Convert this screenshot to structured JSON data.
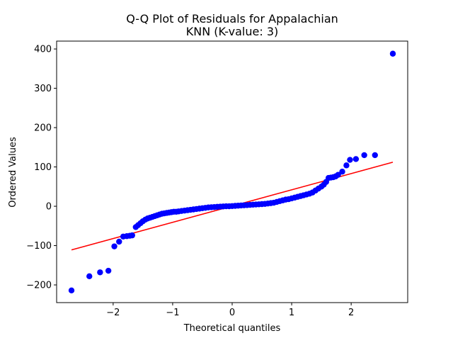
{
  "chart_data": {
    "type": "scatter",
    "title_line1": "Q-Q Plot of Residuals for Appalachian",
    "title_line2": "KNN (K-value: 3)",
    "xlabel": "Theoretical quantiles",
    "ylabel": "Ordered Values",
    "xlim": [
      -2.95,
      2.95
    ],
    "ylim": [
      -245,
      420
    ],
    "xticks": [
      -2,
      -1,
      0,
      1,
      2
    ],
    "xtick_labels": [
      "−2",
      "−1",
      "0",
      "1",
      "2"
    ],
    "yticks": [
      -200,
      -100,
      0,
      100,
      200,
      300,
      400
    ],
    "ytick_labels": [
      "−200",
      "−100",
      "0",
      "100",
      "200",
      "300",
      "400"
    ],
    "grid": false,
    "legend": "none",
    "colors": {
      "points": "#0000ff",
      "fit_line": "#ff0000"
    },
    "series": [
      {
        "kind": "points",
        "x": [
          -2.7,
          -2.4,
          -2.22,
          -2.08,
          -1.98,
          -1.9,
          -1.83,
          -1.77,
          -1.72,
          -1.68,
          -1.62,
          -1.58,
          -1.54,
          -1.5,
          -1.46,
          -1.42,
          -1.38,
          -1.34,
          -1.3,
          -1.26,
          -1.22,
          -1.18,
          -1.14,
          -1.1,
          -1.06,
          -1.02,
          -0.98,
          -0.94,
          -0.9,
          -0.85,
          -0.8,
          -0.75,
          -0.7,
          -0.65,
          -0.6,
          -0.55,
          -0.5,
          -0.45,
          -0.4,
          -0.35,
          -0.3,
          -0.25,
          -0.2,
          -0.15,
          -0.1,
          -0.05,
          0.0,
          0.05,
          0.1,
          0.15,
          0.2,
          0.25,
          0.3,
          0.35,
          0.4,
          0.45,
          0.5,
          0.55,
          0.6,
          0.65,
          0.7,
          0.75,
          0.8,
          0.85,
          0.9,
          0.95,
          1.0,
          1.05,
          1.1,
          1.15,
          1.2,
          1.25,
          1.3,
          1.35,
          1.4,
          1.45,
          1.5,
          1.54,
          1.58,
          1.62,
          1.66,
          1.7,
          1.74,
          1.78,
          1.85,
          1.92,
          1.98,
          2.08,
          2.22,
          2.4,
          2.7
        ],
        "y": [
          -214,
          -178,
          -168,
          -164,
          -102,
          -90,
          -77,
          -76,
          -75,
          -74,
          -53,
          -48,
          -43,
          -38,
          -34,
          -31,
          -29,
          -27,
          -25,
          -23,
          -21,
          -19,
          -18,
          -17,
          -16,
          -15,
          -14,
          -14,
          -13,
          -12,
          -11,
          -10,
          -9,
          -8,
          -7,
          -6,
          -5,
          -4,
          -3,
          -2.5,
          -2,
          -1.5,
          -1,
          -0.5,
          0,
          0,
          0.5,
          1,
          1.5,
          2,
          2.5,
          3,
          3.5,
          4,
          4.5,
          5,
          5.5,
          6,
          7,
          8,
          9,
          11,
          13,
          15,
          17,
          18,
          20,
          22,
          24,
          26,
          28,
          30,
          32,
          35,
          40,
          45,
          50,
          55,
          62,
          72,
          73,
          74,
          76,
          80,
          88,
          104,
          118,
          120,
          130,
          130,
          388
        ]
      },
      {
        "kind": "line",
        "x": [
          -2.7,
          2.7
        ],
        "y": [
          -111,
          112
        ]
      }
    ]
  }
}
